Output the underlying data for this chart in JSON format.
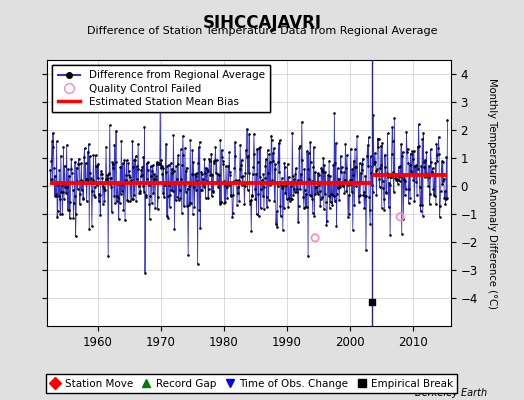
{
  "title": "SIHCCAJAVRI",
  "subtitle": "Difference of Station Temperature Data from Regional Average",
  "ylabel": "Monthly Temperature Anomaly Difference (°C)",
  "xlabel_years": [
    1960,
    1970,
    1980,
    1990,
    2000,
    2010
  ],
  "xlim": [
    1952,
    2016
  ],
  "ylim": [
    -5,
    4.5
  ],
  "yticks": [
    -4,
    -3,
    -2,
    -1,
    0,
    1,
    2,
    3,
    4
  ],
  "background_color": "#e0e0e0",
  "plot_bg_color": "#ffffff",
  "line_color": "#3333cc",
  "dot_color": "#000000",
  "bias_color": "#ff0000",
  "qc_fail_color": "#ff88bb",
  "empirical_break_year": 2003.5,
  "empirical_break_value": -4.15,
  "bias_early": 0.09,
  "bias_late": 0.38,
  "bias_break_year": 2003.5,
  "seed": 42,
  "n_points": 756,
  "start_year": 1952.5,
  "end_year": 2015.5,
  "watermark": "Berkeley Earth",
  "qc_years": [
    1994.5,
    2008.0
  ],
  "qc_vals": [
    -1.85,
    -1.1
  ]
}
